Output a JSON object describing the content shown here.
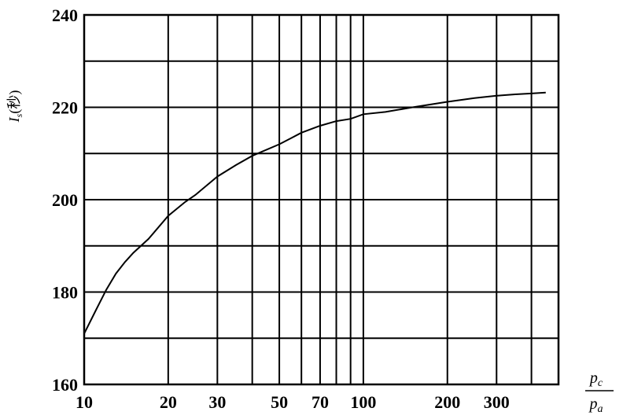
{
  "chart_data": {
    "type": "line",
    "title": "",
    "xlabel": {
      "numerator": "p",
      "numerator_sub": "c",
      "denominator": "p",
      "denominator_sub": "a"
    },
    "ylabel": {
      "symbol": "I",
      "sub": "s",
      "unit": "(秒)"
    },
    "x_scale": "log",
    "xlim": [
      10,
      500
    ],
    "ylim": [
      160,
      240
    ],
    "x_gridlines": [
      20,
      30,
      40,
      50,
      60,
      70,
      80,
      90,
      100,
      200,
      300,
      400
    ],
    "y_gridlines": [
      170,
      180,
      190,
      200,
      210,
      220,
      230
    ],
    "x_tick_labels": [
      "10",
      "20",
      "30",
      "50",
      "70",
      "100",
      "200",
      "300"
    ],
    "y_tick_labels": [
      "160",
      "180",
      "200",
      "220",
      "240"
    ],
    "grid": true,
    "legend": "none",
    "series": [
      {
        "x": [
          10,
          11,
          12,
          13,
          14,
          15,
          17,
          20,
          23,
          25,
          30,
          35,
          40,
          50,
          55,
          60,
          70,
          80,
          90,
          100,
          120,
          150,
          200,
          250,
          300,
          350,
          400,
          450
        ],
        "y": [
          171,
          176,
          180.5,
          184,
          186.5,
          188.5,
          191.5,
          196.5,
          199.5,
          201,
          205,
          207.5,
          209.5,
          212,
          213.3,
          214.5,
          216,
          217,
          217.5,
          218.5,
          219,
          220,
          221.2,
          222,
          222.5,
          222.8,
          223,
          223.2
        ]
      }
    ]
  }
}
